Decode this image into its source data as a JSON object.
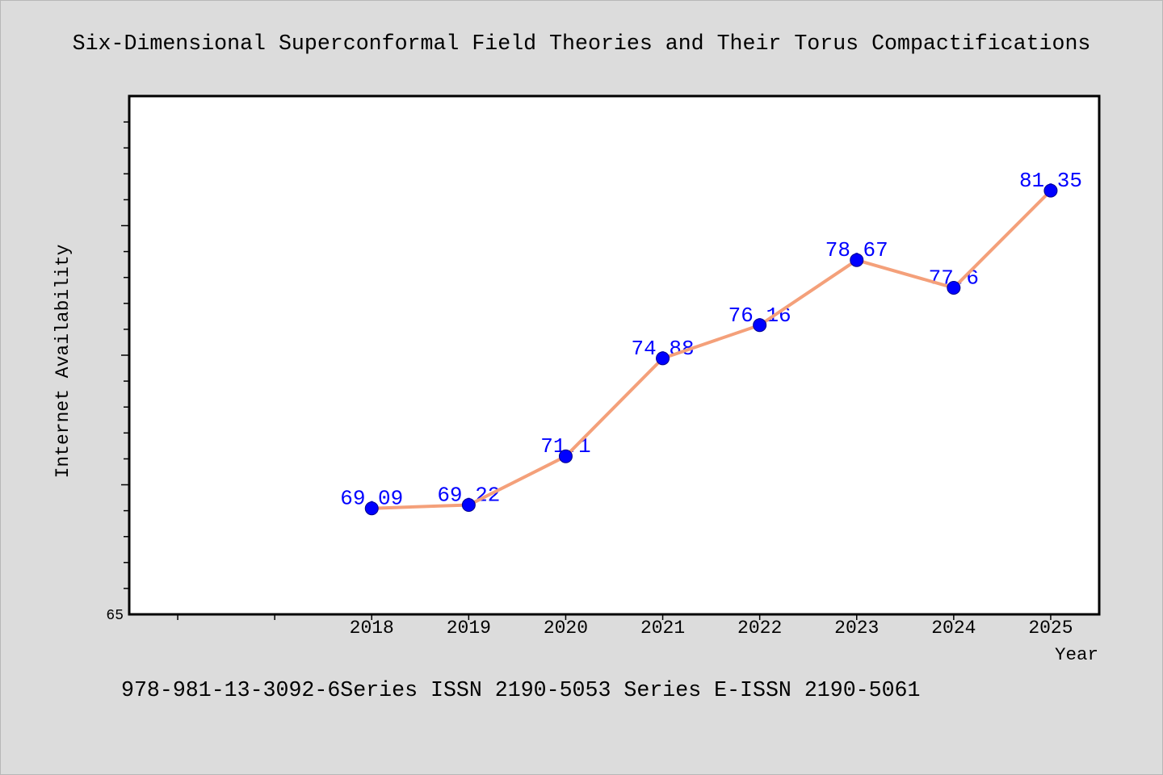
{
  "chart_data": {
    "type": "line",
    "title": "Six-Dimensional Superconformal Field Theories and Their Torus Compactifications",
    "xlabel": "Year",
    "ylabel": "Internet Availability",
    "x": [
      2018,
      2019,
      2020,
      2021,
      2022,
      2023,
      2024,
      2025
    ],
    "x_tick_labels": [
      "2018",
      "2019",
      "2020",
      "2021",
      "2022",
      "2023",
      "2024",
      "2025"
    ],
    "x_unlabeled_ticks": [
      2016,
      2017
    ],
    "xlim": [
      2015.5,
      2025.5
    ],
    "ylim": [
      65,
      85
    ],
    "y_tick_labels": [
      {
        "value": 65,
        "label": "65"
      }
    ],
    "y_major_tick_step": 5,
    "y_minor_tick_step": 1,
    "series": [
      {
        "values": [
          69.09,
          69.22,
          71.1,
          74.88,
          76.16,
          78.67,
          77.6,
          81.35
        ],
        "data_labels": true,
        "line_color": "#f4a07a",
        "marker_color": "#0000ff",
        "marker_edge_color": "#00008b"
      }
    ],
    "grid": false,
    "legend": "none"
  },
  "footer": "978-981-13-3092-6Series ISSN 2190-5053 Series E-ISSN 2190-5061",
  "colors": {
    "page_background": "#dcdcdc",
    "plot_background": "#ffffff",
    "axis": "#000000",
    "data_label": "#0000ff"
  }
}
